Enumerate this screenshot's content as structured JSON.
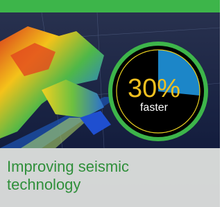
{
  "badge": {
    "value": "30%",
    "caption": "faster"
  },
  "headline": "Improving seismic technology"
}
